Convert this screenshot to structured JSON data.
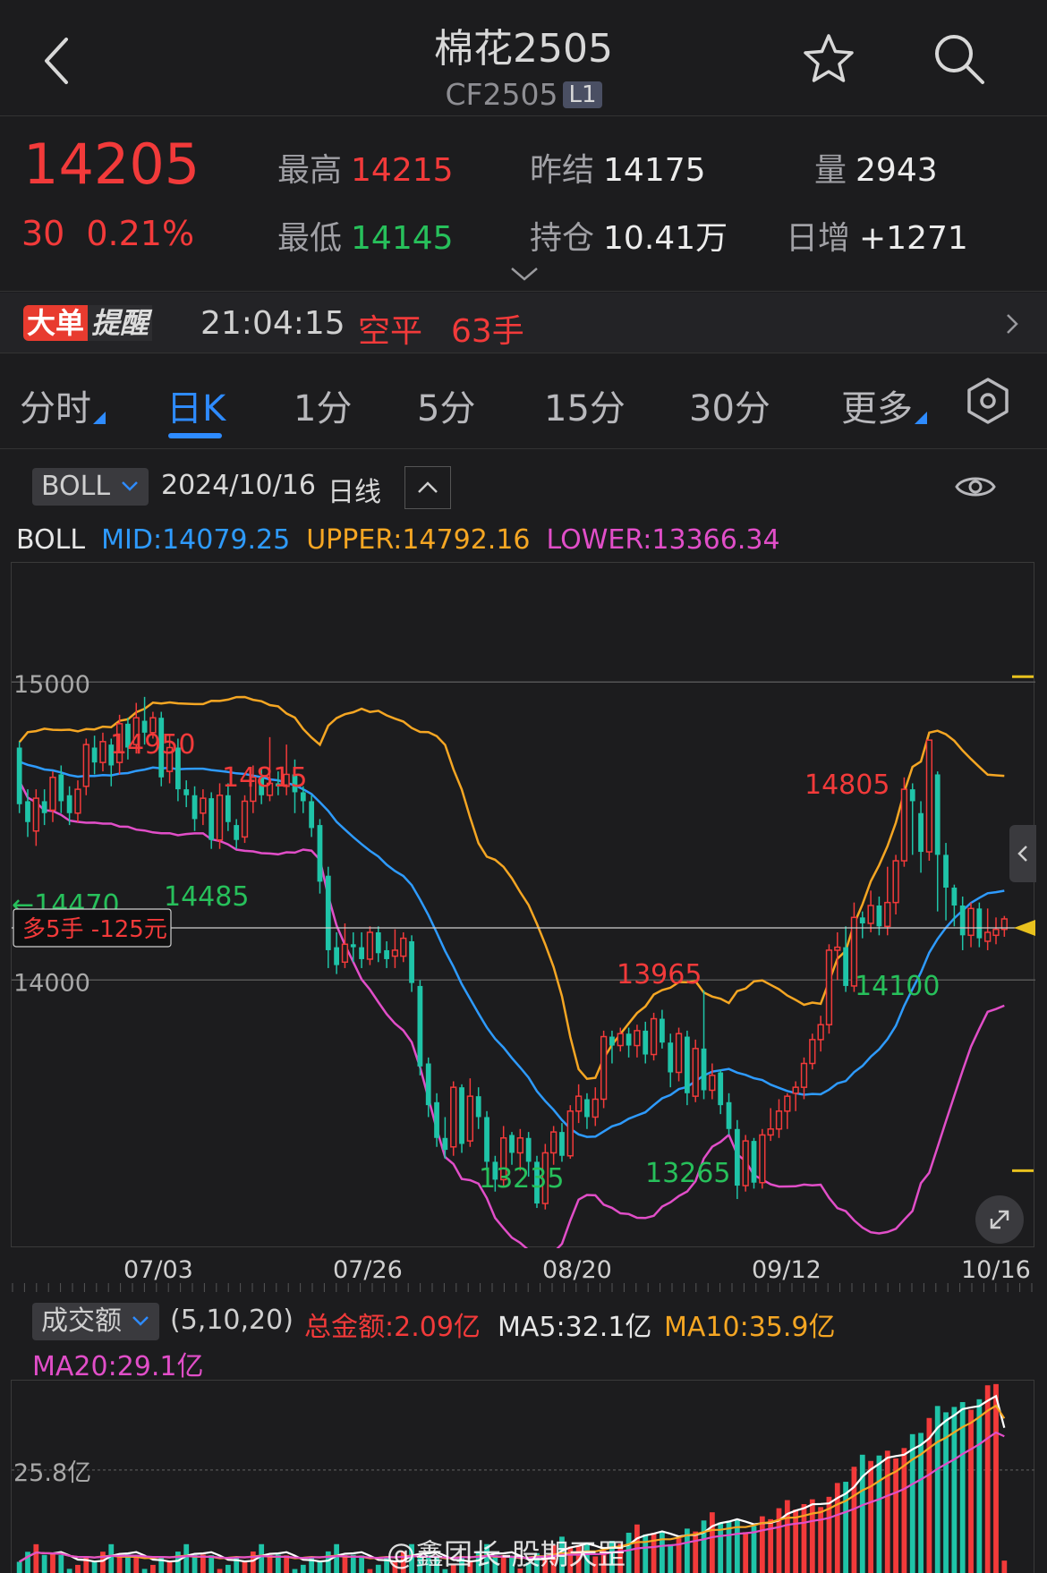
{
  "header": {
    "title": "棉花2505",
    "code": "CF2505",
    "level_badge": "L1"
  },
  "quote": {
    "last_price": "14205",
    "change": "30",
    "change_pct": "0.21%",
    "high_label": "最高",
    "high_value": "14215",
    "low_label": "最低",
    "low_value": "14145",
    "prev_settle_label": "昨结",
    "prev_settle_value": "14175",
    "open_interest_label": "持仓",
    "open_interest_value": "10.41万",
    "volume_label": "量",
    "volume_value": "2943",
    "daily_increase_label": "日增",
    "daily_increase_value": "+1271"
  },
  "alert": {
    "badge_main": "大单",
    "badge_sub": "提醒",
    "time": "21:04:15",
    "action": "空平",
    "quantity": "63手"
  },
  "tabs": [
    {
      "label": "分时",
      "active": false
    },
    {
      "label": "日K",
      "active": true
    },
    {
      "label": "1分",
      "active": false
    },
    {
      "label": "5分",
      "active": false
    },
    {
      "label": "15分",
      "active": false
    },
    {
      "label": "30分",
      "active": false
    },
    {
      "label": "更多",
      "active": false
    }
  ],
  "indicator": {
    "selected": "BOLL",
    "date": "2024/10/16",
    "period": "日线"
  },
  "boll_legend": {
    "name": "BOLL",
    "mid_label": "MID:",
    "mid_value": "14079.25",
    "upper_label": "UPPER:",
    "upper_value": "14792.16",
    "lower_label": "LOWER:",
    "lower_value": "13366.34"
  },
  "colors": {
    "up": "#f23a3a",
    "down": "#1fc4a8",
    "mid": "#2e9bff",
    "upper": "#f5a623",
    "lower": "#e14ec8",
    "accent": "#2e8bff"
  },
  "chart_data": {
    "type": "candlestick",
    "ylim": [
      13100,
      15400
    ],
    "y_ticks": [
      {
        "value": 15000,
        "label": "15000"
      },
      {
        "value": 14000,
        "label": "14000"
      }
    ],
    "x_labels": [
      "07/03",
      "07/26",
      "08/20",
      "09/12",
      "10/16"
    ],
    "candles": [
      [
        14780,
        14590,
        14800,
        14560
      ],
      [
        14600,
        14530,
        14640,
        14480
      ],
      [
        14500,
        14610,
        14640,
        14450
      ],
      [
        14600,
        14560,
        14640,
        14520
      ],
      [
        14570,
        14680,
        14700,
        14530
      ],
      [
        14690,
        14600,
        14720,
        14560
      ],
      [
        14620,
        14560,
        14650,
        14520
      ],
      [
        14560,
        14640,
        14670,
        14530
      ],
      [
        14650,
        14790,
        14810,
        14620
      ],
      [
        14780,
        14730,
        14820,
        14690
      ],
      [
        14730,
        14800,
        14830,
        14700
      ],
      [
        14790,
        14720,
        14810,
        14650
      ],
      [
        14730,
        14860,
        14890,
        14690
      ],
      [
        14860,
        14780,
        14880,
        14740
      ],
      [
        14790,
        14880,
        14930,
        14760
      ],
      [
        14870,
        14830,
        14950,
        14790
      ],
      [
        14830,
        14880,
        14900,
        14810
      ],
      [
        14880,
        14680,
        14900,
        14650
      ],
      [
        14700,
        14780,
        14820,
        14660
      ],
      [
        14780,
        14640,
        14810,
        14600
      ],
      [
        14640,
        14620,
        14670,
        14580
      ],
      [
        14620,
        14540,
        14650,
        14500
      ],
      [
        14560,
        14610,
        14640,
        14520
      ],
      [
        14610,
        14470,
        14630,
        14440
      ],
      [
        14470,
        14620,
        14660,
        14440
      ],
      [
        14620,
        14530,
        14660,
        14500
      ],
      [
        14520,
        14470,
        14540,
        14440
      ],
      [
        14480,
        14600,
        14620,
        14460
      ],
      [
        14600,
        14680,
        14720,
        14560
      ],
      [
        14680,
        14620,
        14710,
        14590
      ],
      [
        14620,
        14660,
        14815,
        14600
      ],
      [
        14660,
        14650,
        14700,
        14620
      ],
      [
        14650,
        14690,
        14790,
        14620
      ],
      [
        14690,
        14630,
        14740,
        14560
      ],
      [
        14630,
        14600,
        14650,
        14560
      ],
      [
        14600,
        14510,
        14620,
        14480
      ],
      [
        14520,
        14330,
        14540,
        14290
      ],
      [
        14350,
        14100,
        14380,
        14040
      ],
      [
        14110,
        14050,
        14160,
        14020
      ],
      [
        14060,
        14120,
        14190,
        14040
      ],
      [
        14120,
        14110,
        14160,
        14060
      ],
      [
        14110,
        14070,
        14160,
        14040
      ],
      [
        14070,
        14160,
        14180,
        14050
      ],
      [
        14160,
        14090,
        14180,
        14060
      ],
      [
        14100,
        14070,
        14130,
        14040
      ],
      [
        14080,
        14100,
        14170,
        14040
      ],
      [
        14080,
        14140,
        14160,
        14060
      ],
      [
        14130,
        13990,
        14150,
        13960
      ],
      [
        13980,
        13710,
        14000,
        13680
      ],
      [
        13720,
        13580,
        13740,
        13540
      ],
      [
        13590,
        13470,
        13620,
        13440
      ],
      [
        13470,
        13430,
        13540,
        13400
      ],
      [
        13440,
        13640,
        13660,
        13410
      ],
      [
        13640,
        13450,
        13650,
        13420
      ],
      [
        13460,
        13610,
        13670,
        13440
      ],
      [
        13610,
        13540,
        13640,
        13500
      ],
      [
        13540,
        13390,
        13560,
        13360
      ],
      [
        13390,
        13330,
        13410,
        13290
      ],
      [
        13330,
        13470,
        13510,
        13310
      ],
      [
        13480,
        13420,
        13490,
        13380
      ],
      [
        13420,
        13470,
        13500,
        13360
      ],
      [
        13470,
        13390,
        13490,
        13340
      ],
      [
        13390,
        13250,
        13410,
        13235
      ],
      [
        13250,
        13420,
        13450,
        13230
      ],
      [
        13420,
        13490,
        13510,
        13380
      ],
      [
        13490,
        13410,
        13520,
        13390
      ],
      [
        13410,
        13560,
        13580,
        13400
      ],
      [
        13560,
        13610,
        13650,
        13520
      ],
      [
        13600,
        13540,
        13620,
        13500
      ],
      [
        13540,
        13600,
        13640,
        13510
      ],
      [
        13600,
        13810,
        13830,
        13570
      ],
      [
        13810,
        13780,
        13830,
        13720
      ],
      [
        13780,
        13820,
        13840,
        13760
      ],
      [
        13820,
        13780,
        13840,
        13740
      ],
      [
        13780,
        13830,
        13850,
        13740
      ],
      [
        13830,
        13750,
        13860,
        13720
      ],
      [
        13750,
        13870,
        13890,
        13730
      ],
      [
        13870,
        13790,
        13900,
        13770
      ],
      [
        13790,
        13690,
        13820,
        13640
      ],
      [
        13690,
        13820,
        13840,
        13660
      ],
      [
        13810,
        13620,
        13830,
        13580
      ],
      [
        13610,
        13770,
        13800,
        13590
      ],
      [
        13770,
        13630,
        13965,
        13600
      ],
      [
        13630,
        13680,
        13720,
        13600
      ],
      [
        13690,
        13580,
        13700,
        13550
      ],
      [
        13590,
        13500,
        13620,
        13480
      ],
      [
        13500,
        13310,
        13530,
        13265
      ],
      [
        13310,
        13460,
        13480,
        13290
      ],
      [
        13460,
        13320,
        13470,
        13300
      ],
      [
        13320,
        13480,
        13500,
        13300
      ],
      [
        13480,
        13500,
        13570,
        13460
      ],
      [
        13500,
        13560,
        13600,
        13470
      ],
      [
        13560,
        13610,
        13620,
        13500
      ],
      [
        13620,
        13640,
        13660,
        13560
      ],
      [
        13640,
        13720,
        13740,
        13600
      ],
      [
        13720,
        13800,
        13820,
        13700
      ],
      [
        13800,
        13850,
        13880,
        13760
      ],
      [
        13850,
        14100,
        14120,
        13820
      ],
      [
        14100,
        14110,
        14160,
        14000
      ],
      [
        14110,
        13980,
        14180,
        13960
      ],
      [
        13980,
        14210,
        14260,
        13960
      ],
      [
        14210,
        14190,
        14230,
        14140
      ],
      [
        14190,
        14250,
        14300,
        14160
      ],
      [
        14250,
        14180,
        14280,
        14150
      ],
      [
        14180,
        14260,
        14380,
        14150
      ],
      [
        14260,
        14400,
        14420,
        14220
      ],
      [
        14400,
        14640,
        14680,
        14380
      ],
      [
        14640,
        14600,
        14660,
        14420
      ],
      [
        14560,
        14430,
        14600,
        14360
      ],
      [
        14430,
        14805,
        14805,
        14400
      ],
      [
        14690,
        14420,
        14700,
        14230
      ],
      [
        14420,
        14310,
        14460,
        14200
      ],
      [
        14310,
        14250,
        14320,
        14180
      ],
      [
        14250,
        14150,
        14280,
        14100
      ],
      [
        14150,
        14240,
        14260,
        14110
      ],
      [
        14240,
        14140,
        14260,
        14110
      ],
      [
        14130,
        14160,
        14240,
        14100
      ],
      [
        14150,
        14170,
        14210,
        14120
      ],
      [
        14170,
        14205,
        14215,
        14145
      ]
    ],
    "annotations": [
      {
        "text": "14950",
        "color": "up"
      },
      {
        "text": "14815",
        "color": "up"
      },
      {
        "text": "←14470",
        "color": "down"
      },
      {
        "text": "14485",
        "color": "down"
      },
      {
        "text": "13965",
        "color": "up"
      },
      {
        "text": "13235",
        "color": "down"
      },
      {
        "text": "13265",
        "color": "down"
      },
      {
        "text": "14805",
        "color": "up"
      },
      {
        "text": "14100",
        "color": "down"
      }
    ],
    "position_tag": "多5手 -125元",
    "position_price": 14175
  },
  "volume": {
    "selector": "成交额",
    "params": "(5,10,20)",
    "total_label": "总金额:",
    "total_value": "2.09亿",
    "ma5_label": "MA5:",
    "ma5_value": "32.1亿",
    "ma10_label": "MA10:",
    "ma10_value": "35.9亿",
    "ma20_label": "MA20:",
    "ma20_value": "29.1亿",
    "y_tick_label": "25.8亿",
    "y_tick_value": 25.8,
    "ymax": 48
  },
  "watermark": "@鑫团长-股期天罡"
}
